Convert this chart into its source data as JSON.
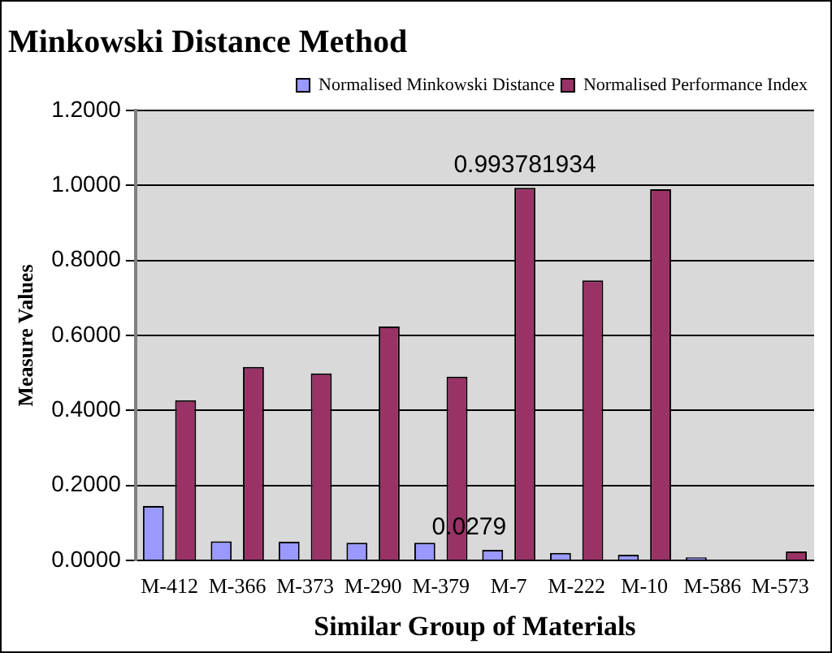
{
  "chart_data": {
    "type": "bar",
    "title": "Minkowski Distance Method",
    "xlabel": "Similar Group of Materials",
    "ylabel": "Measure Values",
    "categories": [
      "M-412",
      "M-366",
      "M-373",
      "M-290",
      "M-379",
      "M-7",
      "M-222",
      "M-10",
      "M-586",
      "M-573"
    ],
    "series": [
      {
        "name": "Normalised Minkowski Distance",
        "color": "#9999ff",
        "values": [
          0.145,
          0.051,
          0.05,
          0.047,
          0.047,
          0.0279,
          0.02,
          0.015,
          0.008,
          0
        ],
        "value_labels": [
          null,
          null,
          null,
          null,
          null,
          "0.0279",
          null,
          null,
          null,
          null
        ]
      },
      {
        "name": "Normalised Performance Index",
        "color": "#993366",
        "values": [
          0.427,
          0.516,
          0.499,
          0.624,
          0.49,
          0.993781934,
          0.747,
          0.99,
          0,
          0.024
        ],
        "value_labels": [
          null,
          null,
          null,
          null,
          null,
          "0.993781934",
          null,
          null,
          null,
          null
        ]
      }
    ],
    "ylim": [
      0,
      1.2
    ],
    "yticks": [
      {
        "value": 0,
        "label": "0.0000"
      },
      {
        "value": 0.2,
        "label": "0.2000"
      },
      {
        "value": 0.4,
        "label": "0.4000"
      },
      {
        "value": 0.6,
        "label": "0.6000"
      },
      {
        "value": 0.8,
        "label": "0.8000"
      },
      {
        "value": 1,
        "label": "1.0000"
      },
      {
        "value": 1.2,
        "label": "1.2000"
      }
    ],
    "grid": "y",
    "legend": "top right"
  }
}
